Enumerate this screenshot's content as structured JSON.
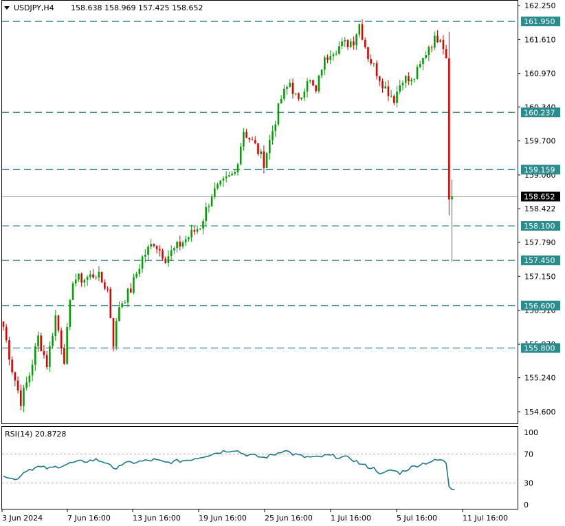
{
  "header": {
    "symbol": "USDJPY,H4",
    "ohlc": "158.638 158.969 157.425 158.652"
  },
  "indicator": {
    "label": "RSI(14) 20.8728",
    "levels": [
      70,
      30
    ],
    "axis_labels": [
      "100",
      "70",
      "30",
      "0"
    ]
  },
  "price_axis": {
    "ticks": [
      "162.250",
      "161.610",
      "160.970",
      "160.340",
      "159.700",
      "159.060",
      "158.422",
      "157.790",
      "157.150",
      "156.510",
      "155.870",
      "155.240",
      "154.600"
    ]
  },
  "levels": [
    {
      "value": 161.95,
      "label": "161.950"
    },
    {
      "value": 160.237,
      "label": "160.237"
    },
    {
      "value": 159.159,
      "label": "159.159"
    },
    {
      "value": 158.1,
      "label": "158.100"
    },
    {
      "value": 157.45,
      "label": "157.450"
    },
    {
      "value": 156.6,
      "label": "156.600"
    },
    {
      "value": 155.8,
      "label": "155.800"
    }
  ],
  "current_price": {
    "value": 158.652,
    "label": "158.652"
  },
  "time_axis": {
    "labels": [
      "3 Jun 2024",
      "7 Jun 16:00",
      "13 Jun 16:00",
      "19 Jun 16:00",
      "25 Jun 16:00",
      "1 Jul 16:00",
      "5 Jul 16:00",
      "11 Jul 16:00"
    ]
  },
  "colors": {
    "up": "#00a000",
    "down": "#e00000",
    "level_line": "#1a7a7a",
    "level_tag": "#2a8c8c",
    "rsi": "#1a7a8c",
    "current_tag": "#000000"
  },
  "chart_data": {
    "type": "candlestick",
    "title": "USDJPY,H4",
    "ylim": [
      154.4,
      162.4
    ],
    "waypoints": [
      [
        0,
        156.2
      ],
      [
        3,
        155.4
      ],
      [
        6,
        154.8
      ],
      [
        9,
        155.3
      ],
      [
        12,
        156.0
      ],
      [
        15,
        155.5
      ],
      [
        18,
        156.4
      ],
      [
        21,
        155.6
      ],
      [
        24,
        157.1
      ],
      [
        28,
        157.1
      ],
      [
        32,
        157.2
      ],
      [
        36,
        156.9
      ],
      [
        38,
        155.9
      ],
      [
        40,
        156.6
      ],
      [
        44,
        156.9
      ],
      [
        48,
        157.5
      ],
      [
        52,
        157.8
      ],
      [
        56,
        157.5
      ],
      [
        60,
        157.7
      ],
      [
        64,
        157.9
      ],
      [
        68,
        158.1
      ],
      [
        72,
        158.7
      ],
      [
        76,
        158.9
      ],
      [
        80,
        159.1
      ],
      [
        83,
        159.9
      ],
      [
        87,
        159.6
      ],
      [
        90,
        159.3
      ],
      [
        93,
        159.9
      ],
      [
        96,
        160.5
      ],
      [
        99,
        160.8
      ],
      [
        102,
        160.4
      ],
      [
        105,
        160.9
      ],
      [
        108,
        160.6
      ],
      [
        110,
        161.1
      ],
      [
        113,
        161.4
      ],
      [
        117,
        161.5
      ],
      [
        121,
        161.6
      ],
      [
        123,
        161.9
      ],
      [
        126,
        161.3
      ],
      [
        129,
        161.0
      ],
      [
        132,
        160.7
      ],
      [
        135,
        160.5
      ],
      [
        138,
        160.9
      ],
      [
        141,
        160.8
      ],
      [
        144,
        161.1
      ],
      [
        147,
        161.5
      ],
      [
        151,
        161.7
      ],
      [
        153,
        161.3
      ],
      [
        154,
        158.6
      ],
      [
        155,
        158.652
      ]
    ],
    "rsi_waypoints": [
      [
        0,
        42
      ],
      [
        4,
        34
      ],
      [
        8,
        48
      ],
      [
        12,
        52
      ],
      [
        16,
        50
      ],
      [
        20,
        54
      ],
      [
        24,
        58
      ],
      [
        28,
        60
      ],
      [
        32,
        62
      ],
      [
        36,
        58
      ],
      [
        38,
        48
      ],
      [
        40,
        55
      ],
      [
        44,
        58
      ],
      [
        48,
        60
      ],
      [
        52,
        62
      ],
      [
        56,
        58
      ],
      [
        60,
        60
      ],
      [
        64,
        62
      ],
      [
        68,
        66
      ],
      [
        72,
        70
      ],
      [
        76,
        74
      ],
      [
        80,
        76
      ],
      [
        83,
        70
      ],
      [
        86,
        68
      ],
      [
        90,
        65
      ],
      [
        94,
        70
      ],
      [
        97,
        76
      ],
      [
        100,
        70
      ],
      [
        104,
        66
      ],
      [
        108,
        65
      ],
      [
        112,
        68
      ],
      [
        116,
        66
      ],
      [
        120,
        64
      ],
      [
        124,
        55
      ],
      [
        128,
        50
      ],
      [
        131,
        42
      ],
      [
        134,
        48
      ],
      [
        137,
        44
      ],
      [
        140,
        50
      ],
      [
        144,
        56
      ],
      [
        148,
        60
      ],
      [
        151,
        62
      ],
      [
        153,
        58
      ],
      [
        154,
        25
      ],
      [
        155,
        20.87
      ]
    ]
  }
}
